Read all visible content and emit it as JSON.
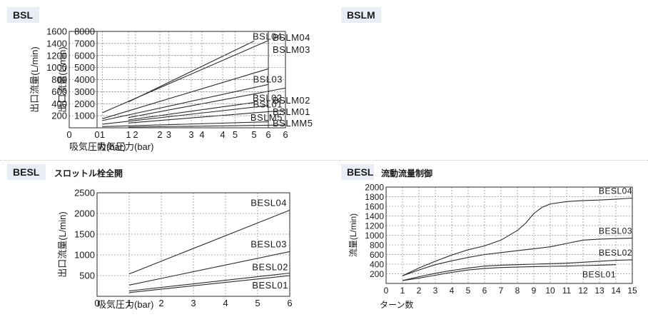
{
  "charts": [
    {
      "badge": "BSL",
      "subtitle": "",
      "chart_data": {
        "type": "line",
        "xlabel": "吸気圧力(bar)",
        "ylabel": "出口流量(L/min)",
        "xlim": [
          0,
          6
        ],
        "ylim": [
          0,
          8000
        ],
        "xticks": [
          "0",
          "1",
          "2",
          "3",
          "4",
          "5",
          "6"
        ],
        "yticks": [
          "1000",
          "2000",
          "3000",
          "4000",
          "5000",
          "6000",
          "7000",
          "8000"
        ],
        "grid": true,
        "series": [
          {
            "name": "BSL04",
            "x": [
              1,
              5
            ],
            "y": [
              2150,
              7200
            ]
          },
          {
            "name": "BSL03",
            "x": [
              1,
              6
            ],
            "y": [
              850,
              3300
            ]
          },
          {
            "name": "BSL02",
            "x": [
              1,
              5
            ],
            "y": [
              650,
              2100
            ]
          },
          {
            "name": "BSL01",
            "x": [
              1,
              6
            ],
            "y": [
              400,
              1450
            ]
          },
          {
            "name": "BSLM5",
            "x": [
              1,
              6
            ],
            "y": [
              60,
              230
            ]
          }
        ]
      }
    },
    {
      "badge": "BSLM",
      "subtitle": "",
      "chart_data": {
        "type": "line",
        "xlabel": "吸気圧力(bar)",
        "ylabel": "出口流量(L/min)",
        "xlim": [
          0,
          6
        ],
        "ylim": [
          0,
          1600
        ],
        "xticks": [
          "0",
          "1",
          "2",
          "3",
          "4",
          "5",
          "6"
        ],
        "yticks": [
          "200",
          "400",
          "600",
          "800",
          "1000",
          "1200",
          "1400",
          "1600"
        ],
        "grid": true,
        "series": [
          {
            "name": "BSLM04",
            "x": [
              1,
              6
            ],
            "y": [
              250,
              1450
            ]
          },
          {
            "name": "BSLM03",
            "x": [
              1,
              6
            ],
            "y": [
              150,
              980
            ]
          },
          {
            "name": "BSLM02",
            "x": [
              1,
              6
            ],
            "y": [
              120,
              720
            ]
          },
          {
            "name": "BSLM01",
            "x": [
              1,
              6
            ],
            "y": [
              60,
              370
            ]
          },
          {
            "name": "BSLMM5",
            "x": [
              1,
              6
            ],
            "y": [
              20,
              100
            ]
          }
        ]
      }
    },
    {
      "badge": "BESL",
      "subtitle": "スロットル栓全開",
      "chart_data": {
        "type": "line",
        "xlabel": "吸気圧力(bar)",
        "ylabel": "出口流量(L/min)",
        "xlim": [
          0,
          6
        ],
        "ylim": [
          0,
          2500
        ],
        "xticks": [
          "0",
          "1",
          "2",
          "3",
          "4",
          "5",
          "6"
        ],
        "yticks": [
          "500",
          "1000",
          "1500",
          "2000",
          "2500"
        ],
        "grid": true,
        "series": [
          {
            "name": "BESL04",
            "x": [
              1,
              6
            ],
            "y": [
              540,
              2080
            ]
          },
          {
            "name": "BESL03",
            "x": [
              1,
              6
            ],
            "y": [
              270,
              1080
            ]
          },
          {
            "name": "BESL02",
            "x": [
              1,
              6
            ],
            "y": [
              130,
              560
            ]
          },
          {
            "name": "BESL01",
            "x": [
              1,
              6
            ],
            "y": [
              90,
              500
            ]
          }
        ]
      }
    },
    {
      "badge": "BESL",
      "subtitle": "流動流量制御",
      "chart_data": {
        "type": "line",
        "xlabel": "ターン数",
        "ylabel": "流量(L/min)",
        "xlim": [
          0,
          15
        ],
        "ylim": [
          0,
          2000
        ],
        "xticks": [
          "0",
          "1",
          "2",
          "3",
          "4",
          "5",
          "6",
          "7",
          "8",
          "9",
          "10",
          "11",
          "12",
          "13",
          "14",
          "15"
        ],
        "yticks": [
          "200",
          "400",
          "600",
          "800",
          "1000",
          "1200",
          "1400",
          "1600",
          "1800",
          "2000"
        ],
        "grid": true,
        "series": [
          {
            "name": "BESL04",
            "x": [
              1,
              2,
              3,
              4,
              5,
              6,
              7,
              8,
              8.5,
              9,
              9.5,
              10,
              11,
              12,
              13,
              14,
              15
            ],
            "y": [
              160,
              320,
              460,
              590,
              700,
              780,
              900,
              1100,
              1250,
              1450,
              1580,
              1650,
              1700,
              1720,
              1730,
              1750,
              1770
            ]
          },
          {
            "name": "BESL03",
            "x": [
              1,
              2,
              3,
              4,
              5,
              6,
              7,
              8,
              9,
              10,
              11,
              12,
              13,
              14,
              15
            ],
            "y": [
              160,
              280,
              390,
              470,
              540,
              600,
              640,
              680,
              720,
              760,
              830,
              900,
              920,
              930,
              940
            ]
          },
          {
            "name": "BESL02",
            "x": [
              1,
              2,
              3,
              4,
              5,
              6,
              7,
              8,
              9,
              10,
              11,
              12,
              13,
              14,
              15
            ],
            "y": [
              60,
              140,
              210,
              270,
              320,
              360,
              380,
              390,
              400,
              410,
              420,
              440,
              460,
              480,
              490
            ]
          },
          {
            "name": "BESL01",
            "x": [
              1,
              2,
              3,
              4,
              5,
              6,
              7,
              8,
              9,
              10,
              11,
              12,
              13,
              14
            ],
            "y": [
              60,
              110,
              170,
              230,
              280,
              310,
              330,
              340,
              350,
              355,
              360,
              370,
              380,
              390
            ]
          }
        ]
      }
    }
  ]
}
